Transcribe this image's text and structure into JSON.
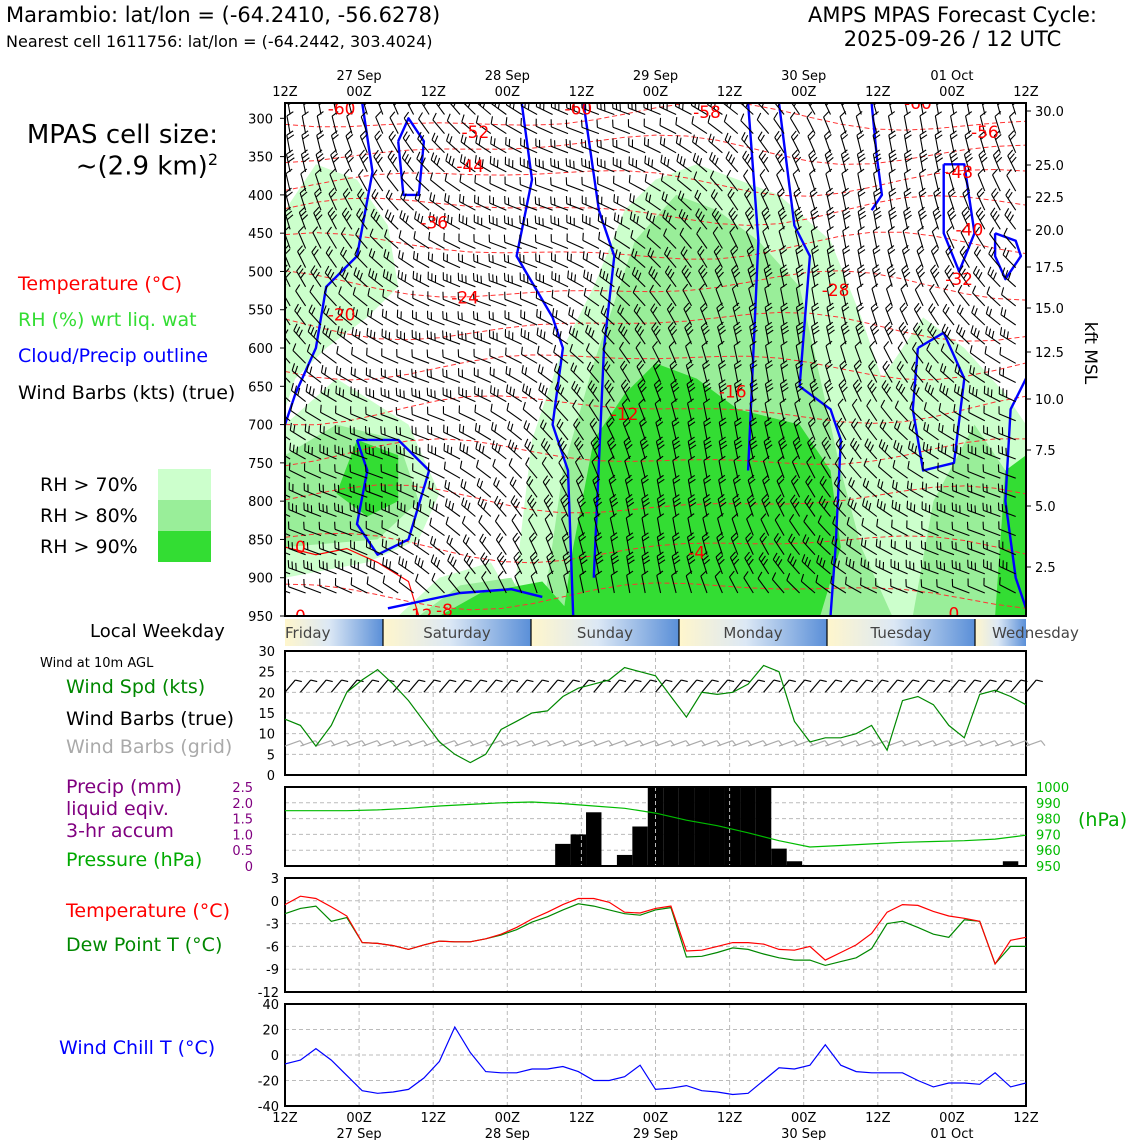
{
  "header": {
    "station_line": "Marambio: lat/lon = (-64.2410, -56.6278)",
    "cell_line": "Nearest cell 1611756: lat/lon = (-64.2442, 303.4024)",
    "cycle_line1": "AMPS MPAS Forecast Cycle:",
    "cycle_line2": "2025-09-26 / 12 UTC"
  },
  "cell_size": {
    "line1": "MPAS cell size:",
    "line2": "~(2.9 km)",
    "exponent": "2"
  },
  "legend": {
    "temperature": {
      "label": "Temperature (°C)",
      "color": "#ff0000"
    },
    "rh": {
      "label": "RH (%) wrt liq. wat",
      "color": "#33dd33"
    },
    "cloud": {
      "label": "Cloud/Precip outline",
      "color": "#0000ff"
    },
    "wind": {
      "label": "Wind Barbs (kts) (true)",
      "color": "#000000"
    }
  },
  "rh_legend": [
    {
      "label": "RH > 70%",
      "color": "#ccffcc"
    },
    {
      "label": "RH > 80%",
      "color": "#99ee99"
    },
    {
      "label": "RH > 90%",
      "color": "#33dd33"
    }
  ],
  "time_axis": {
    "top_labels": [
      {
        "hour": "12Z",
        "date": ""
      },
      {
        "hour": "00Z",
        "date": "27 Sep"
      },
      {
        "hour": "12Z",
        "date": ""
      },
      {
        "hour": "00Z",
        "date": "28 Sep"
      },
      {
        "hour": "12Z",
        "date": ""
      },
      {
        "hour": "00Z",
        "date": "29 Sep"
      },
      {
        "hour": "12Z",
        "date": ""
      },
      {
        "hour": "00Z",
        "date": "30 Sep"
      },
      {
        "hour": "12Z",
        "date": ""
      },
      {
        "hour": "00Z",
        "date": "01 Oct"
      },
      {
        "hour": "12Z",
        "date": ""
      }
    ]
  },
  "weekday": {
    "label": "Local Weekday",
    "days": [
      "Friday",
      "Saturday",
      "Sunday",
      "Monday",
      "Tuesday",
      "Wednesday"
    ]
  },
  "panel_wind": {
    "title": "Wind at 10m AGL",
    "spd_label": "Wind Spd (kts)",
    "true_label": "Wind Barbs (true)",
    "grid_label": "Wind Barbs (grid)"
  },
  "panel_precip": {
    "precip_line1": "Precip (mm)",
    "precip_line2": "liquid eqiv.",
    "precip_line3": "3-hr accum",
    "pressure_label": "Pressure (hPa)",
    "hpa_unit": "(hPa)",
    "precip_color": "#800080",
    "pressure_color": "#00bb00"
  },
  "panel_temp": {
    "temp_label": "Temperature (°C)",
    "dew_label": "Dew Point T (°C)"
  },
  "panel_chill": {
    "label": "Wind Chill T (°C)"
  },
  "chart_data": [
    {
      "type": "heatmap",
      "x_hours": [
        0,
        144
      ],
      "ylabel_right": "kft MSL",
      "y_left_ticks": [
        "300",
        "350",
        "400",
        "450",
        "500",
        "550",
        "600",
        "650",
        "700",
        "750",
        "800",
        "850",
        "900",
        "950"
      ],
      "y_right_ticks": [
        "30.0",
        "25.0",
        "22.5",
        "20.0",
        "17.5",
        "15.0",
        "12.5",
        "10.0",
        "7.5",
        "5.0",
        "2.5"
      ],
      "temperature_labels": [
        {
          "text": "-60",
          "t": 11,
          "p": 287
        },
        {
          "text": "-60",
          "t": 57,
          "p": 287
        },
        {
          "text": "-58",
          "t": 82,
          "p": 292
        },
        {
          "text": "-60",
          "t": 123,
          "p": 280
        },
        {
          "text": "-52",
          "t": 37,
          "p": 318
        },
        {
          "text": "-56",
          "t": 136,
          "p": 318
        },
        {
          "text": "-44",
          "t": 36,
          "p": 362
        },
        {
          "text": "-48",
          "t": 131,
          "p": 370
        },
        {
          "text": "-36",
          "t": 29,
          "p": 436
        },
        {
          "text": "-40",
          "t": 133,
          "p": 445
        },
        {
          "text": "-32",
          "t": 131,
          "p": 510
        },
        {
          "text": "-28",
          "t": 107,
          "p": 524
        },
        {
          "text": "-24",
          "t": 35,
          "p": 534
        },
        {
          "text": "-20",
          "t": 11,
          "p": 556
        },
        {
          "text": "-16",
          "t": 87,
          "p": 657
        },
        {
          "text": "-12",
          "t": 66,
          "p": 686
        },
        {
          "text": "0",
          "t": 3,
          "p": 860
        },
        {
          "text": "-4",
          "t": 80,
          "p": 867
        },
        {
          "text": "-8",
          "t": 31,
          "p": 942
        },
        {
          "text": "-12",
          "t": 26,
          "p": 949
        },
        {
          "text": "0",
          "t": 3,
          "p": 950
        },
        {
          "text": "0",
          "t": 130,
          "p": 947
        }
      ]
    },
    {
      "type": "line",
      "name_panel": "wind10m",
      "ylim": [
        0,
        30
      ],
      "y_ticks": [
        0,
        5,
        10,
        15,
        20,
        25,
        30
      ],
      "x_hours": [
        0,
        3,
        6,
        9,
        12,
        15,
        18,
        21,
        24,
        27,
        30,
        33,
        36,
        39,
        42,
        45,
        48,
        51,
        54,
        57,
        60,
        63,
        66,
        69,
        72,
        75,
        78,
        81,
        84,
        87,
        90,
        93,
        96,
        99,
        102,
        105,
        108,
        111,
        114,
        117,
        120,
        123,
        126,
        129,
        132,
        135,
        138,
        141,
        144
      ],
      "series": [
        {
          "values": [
            13.5,
            12,
            7,
            12,
            20,
            23,
            25.5,
            22,
            18,
            13,
            8,
            5,
            3,
            5,
            11,
            13,
            15,
            15.5,
            19,
            21,
            22,
            23,
            26,
            25,
            24,
            19,
            14,
            20,
            19.5,
            20,
            22,
            26.5,
            25,
            13,
            8,
            9,
            9,
            10,
            12,
            6,
            18,
            19,
            17,
            12,
            9,
            19.5,
            20.5,
            19,
            17
          ]
        }
      ]
    },
    {
      "type": "bar",
      "name_panel": "precip_pressure",
      "ylim": [
        0,
        2.5
      ],
      "y_ticks": [
        0,
        0.5,
        1.0,
        1.5,
        2.0,
        2.5
      ],
      "y2lim": [
        950,
        1000
      ],
      "y2_ticks": [
        950,
        960,
        970,
        980,
        990,
        1000
      ],
      "bar_hours": [
        54,
        57,
        60,
        63,
        66,
        69,
        72,
        75,
        78,
        81,
        84,
        87,
        90,
        93,
        96,
        99,
        102,
        141
      ],
      "bar_values": [
        0.7,
        1.0,
        1.7,
        0,
        0.35,
        1.25,
        2.5,
        2.5,
        2.5,
        2.5,
        2.5,
        2.5,
        2.5,
        2.5,
        0.55,
        0.15,
        0,
        0.15
      ],
      "pressure_hours": [
        0,
        6,
        12,
        18,
        24,
        30,
        36,
        42,
        48,
        54,
        60,
        66,
        72,
        78,
        84,
        90,
        96,
        102,
        108,
        114,
        120,
        126,
        132,
        138,
        144
      ],
      "pressure_values": [
        985,
        985,
        985,
        985.5,
        986.5,
        988,
        989,
        990,
        990.5,
        989.5,
        988,
        986.5,
        983.5,
        979,
        975.5,
        971,
        966,
        962,
        963,
        964,
        965,
        965.5,
        966,
        967,
        969.5
      ]
    },
    {
      "type": "line",
      "name_panel": "temp_dew",
      "ylim": [
        -12,
        3
      ],
      "y_ticks": [
        3,
        0,
        -3,
        -6,
        -9,
        -12
      ],
      "x_hours": [
        0,
        3,
        6,
        9,
        12,
        15,
        18,
        21,
        24,
        27,
        30,
        33,
        36,
        39,
        42,
        45,
        48,
        51,
        54,
        57,
        60,
        63,
        66,
        69,
        72,
        75,
        78,
        81,
        84,
        87,
        90,
        93,
        96,
        99,
        102,
        105,
        108,
        111,
        114,
        117,
        120,
        123,
        126,
        129,
        132,
        135,
        138,
        141,
        144
      ],
      "series": [
        {
          "name": "Temperature",
          "values": [
            -0.5,
            0.6,
            0.3,
            -0.8,
            -2,
            -5.5,
            -5.6,
            -5.9,
            -6.4,
            -5.8,
            -5.3,
            -5.4,
            -5.4,
            -5.0,
            -4.4,
            -3.5,
            -2.4,
            -1.5,
            -0.5,
            0.3,
            0.3,
            -0.2,
            -1.5,
            -1.6,
            -1.0,
            -0.7,
            -6.6,
            -6.5,
            -6.0,
            -5.5,
            -5.5,
            -5.7,
            -6.4,
            -6.5,
            -6.0,
            -7.8,
            -6.8,
            -5.8,
            -4.3,
            -1.5,
            -0.5,
            -0.6,
            -1.4,
            -2.0,
            -2.3,
            -2.7,
            -8.3,
            -5.2,
            -4.8
          ]
        },
        {
          "name": "Dew Point",
          "values": [
            -1.7,
            -1.0,
            -0.7,
            -2.7,
            -2.2,
            -5.5,
            -5.6,
            -5.9,
            -6.4,
            -5.8,
            -5.3,
            -5.4,
            -5.4,
            -5.0,
            -4.5,
            -3.8,
            -2.8,
            -2.1,
            -1.2,
            -0.4,
            -0.7,
            -1.2,
            -1.7,
            -1.9,
            -1.2,
            -0.9,
            -7.4,
            -7.3,
            -6.8,
            -6.2,
            -6.4,
            -7.0,
            -7.5,
            -7.8,
            -7.8,
            -8.5,
            -8.0,
            -7.5,
            -6.3,
            -3.0,
            -2.7,
            -3.5,
            -4.4,
            -4.8,
            -2.5,
            -2.7,
            -8.3,
            -6.0,
            -6.0
          ]
        }
      ]
    },
    {
      "type": "line",
      "name_panel": "wind_chill",
      "ylim": [
        -40,
        40
      ],
      "y_ticks": [
        40,
        20,
        0,
        -20,
        -40
      ],
      "x_hours": [
        0,
        3,
        6,
        9,
        12,
        15,
        18,
        21,
        24,
        27,
        30,
        33,
        36,
        39,
        42,
        45,
        48,
        51,
        54,
        57,
        60,
        63,
        66,
        69,
        72,
        75,
        78,
        81,
        84,
        87,
        90,
        93,
        96,
        99,
        102,
        105,
        108,
        111,
        114,
        117,
        120,
        123,
        126,
        129,
        132,
        135,
        138,
        141,
        144
      ],
      "series": [
        {
          "values": [
            -7,
            -4,
            5,
            -4,
            -16,
            -28,
            -30,
            -29,
            -27,
            -18,
            -5,
            22,
            2,
            -13,
            -14,
            -14,
            -11,
            -11,
            -9,
            -13,
            -20,
            -20,
            -17,
            -8,
            -27,
            -26,
            -24,
            -28,
            -29,
            -31,
            -30,
            -20,
            -10,
            -11,
            -8,
            8,
            -8,
            -13,
            -14,
            -14,
            -14,
            -20,
            -25,
            -22,
            -22,
            -23,
            -14,
            -25,
            -22
          ]
        }
      ]
    }
  ]
}
